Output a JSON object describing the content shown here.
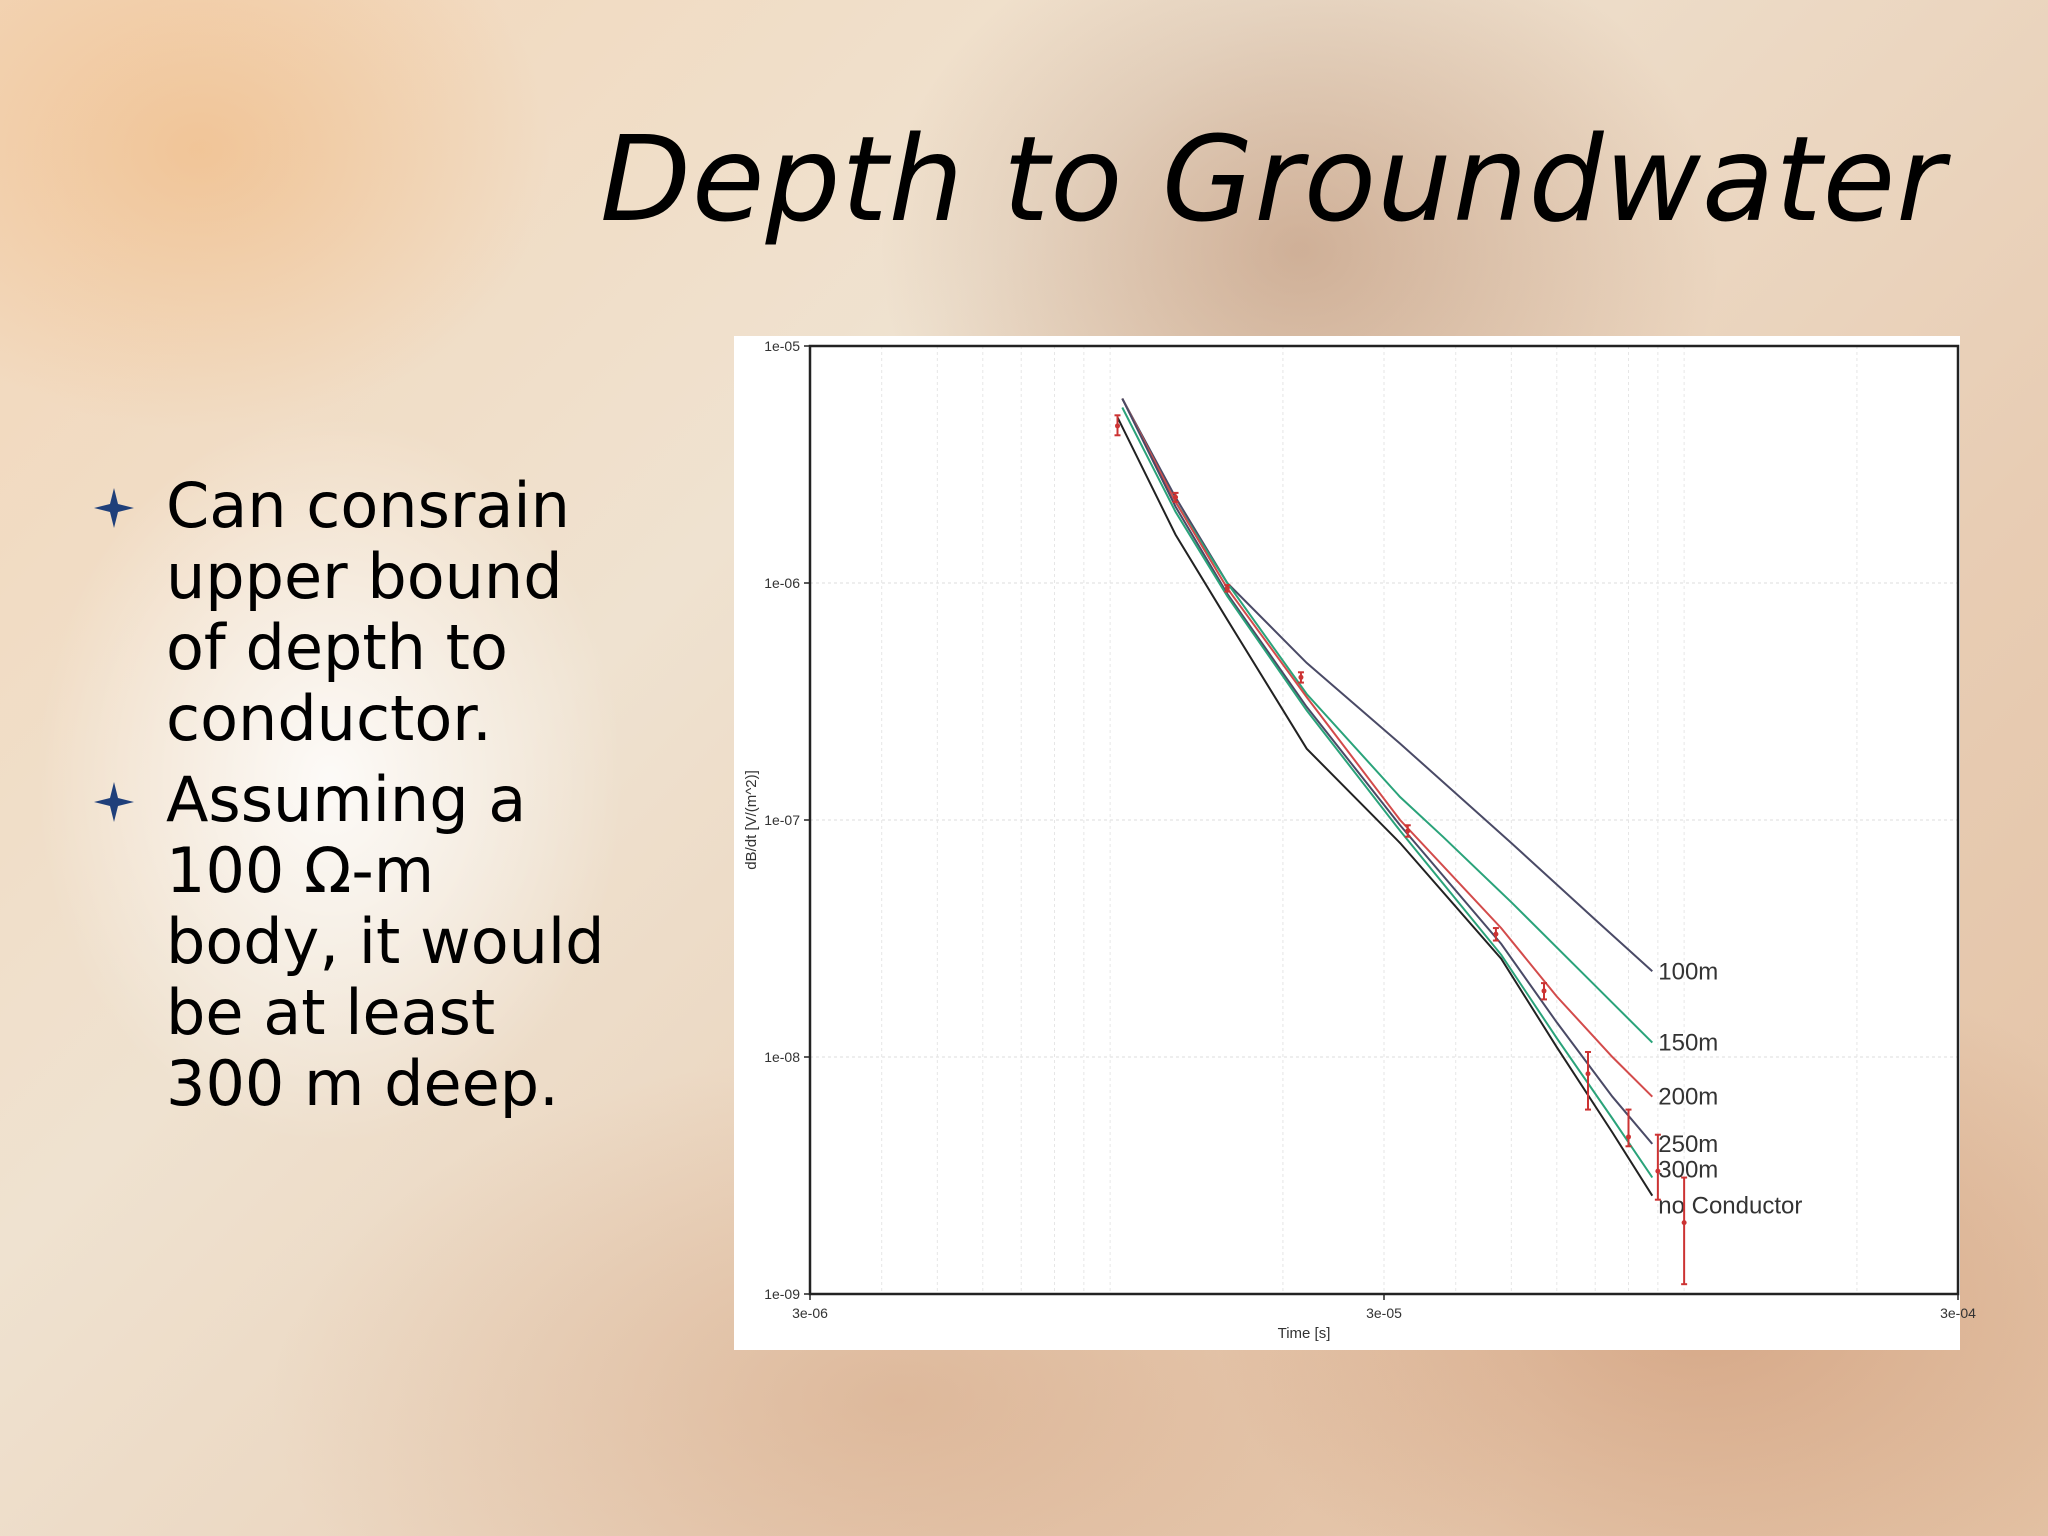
{
  "slide": {
    "title": "Depth to Groundwater",
    "bullets": [
      "Can consrain upper bound of depth to conductor.",
      "Assuming a 100 Ω-m body, it would be at least 300 m deep."
    ],
    "bullet_icon": "four-point-star-icon",
    "bullet_color": "#1f3f7a"
  },
  "chart_data": {
    "type": "line",
    "title": "",
    "xlabel": "Time [s]",
    "ylabel": "dB/dt [V/(m^2)]",
    "xscale": "log",
    "yscale": "log",
    "xlim": [
      3e-06,
      0.0003
    ],
    "ylim": [
      1e-09,
      1e-05
    ],
    "xticks": [
      {
        "value": 3e-06,
        "label": "3e-06"
      },
      {
        "value": 3e-05,
        "label": "3e-05"
      },
      {
        "value": 0.0003,
        "label": "3e-04"
      }
    ],
    "yticks": [
      {
        "value": 1e-05,
        "label": "1e-05"
      },
      {
        "value": 1e-06,
        "label": "1e-06"
      },
      {
        "value": 1e-07,
        "label": "1e-07"
      },
      {
        "value": 1e-08,
        "label": "1e-08"
      },
      {
        "value": 1e-09,
        "label": "1e-09"
      }
    ],
    "grid": true,
    "legend": "none",
    "series": [
      {
        "name": "100m",
        "color": "#4a4a66",
        "x": [
          1.05e-05,
          1.3e-05,
          1.6e-05,
          2.2e-05,
          3.2e-05,
          5e-05,
          7e-05,
          8.8e-05
        ],
        "y": [
          6e-06,
          2.3e-06,
          1e-06,
          4.6e-07,
          2.1e-07,
          8e-08,
          3.8e-08,
          2.3e-08
        ]
      },
      {
        "name": "150m",
        "color": "#2aa37a",
        "x": [
          1.05e-05,
          1.3e-05,
          1.6e-05,
          2.2e-05,
          3.2e-05,
          3.8e-05,
          5e-05,
          7e-05,
          8.8e-05
        ],
        "y": [
          6e-06,
          2.2e-06,
          1e-06,
          3.4e-07,
          1.25e-07,
          8.5e-08,
          4.5e-08,
          2e-08,
          1.15e-08
        ]
      },
      {
        "name": "200m",
        "color": "#d34b4b",
        "x": [
          1.05e-05,
          1.3e-05,
          1.6e-05,
          2.2e-05,
          3.2e-05,
          4.8e-05,
          6e-05,
          7.5e-05,
          8.8e-05
        ],
        "y": [
          6e-06,
          2.2e-06,
          9.5e-07,
          3.3e-07,
          1e-07,
          3.5e-08,
          1.8e-08,
          1e-08,
          6.8e-09
        ]
      },
      {
        "name": "250m",
        "color": "#4a4a66",
        "x": [
          1.05e-05,
          1.3e-05,
          1.6e-05,
          2.2e-05,
          3.2e-05,
          4.8e-05,
          6e-05,
          7.5e-05,
          8.8e-05
        ],
        "y": [
          6e-06,
          2.1e-06,
          9e-07,
          3e-07,
          9.5e-08,
          3e-08,
          1.4e-08,
          6.8e-09,
          4.3e-09
        ]
      },
      {
        "name": "300m",
        "color": "#2aa37a",
        "x": [
          1.05e-05,
          1.3e-05,
          1.6e-05,
          2.2e-05,
          3.2e-05,
          4.8e-05,
          6e-05,
          7.5e-05,
          8.8e-05
        ],
        "y": [
          5.5e-06,
          2e-06,
          8.8e-07,
          2.9e-07,
          9e-08,
          2.7e-08,
          1.2e-08,
          5.5e-09,
          3.1e-09
        ]
      },
      {
        "name": "no Conductor",
        "color": "#222222",
        "x": [
          1.03e-05,
          1.3e-05,
          1.6e-05,
          2.2e-05,
          3.2e-05,
          4.8e-05,
          6e-05,
          7.5e-05,
          8.8e-05
        ],
        "y": [
          5e-06,
          1.6e-06,
          7e-07,
          2e-07,
          8e-08,
          2.6e-08,
          1.1e-08,
          4.8e-09,
          2.6e-09
        ]
      }
    ],
    "observed": {
      "color": "#cc3333",
      "x": [
        1.03e-05,
        1.3e-05,
        1.6e-05,
        2.15e-05,
        3.3e-05,
        4.7e-05,
        5.7e-05,
        6.8e-05,
        8e-05,
        9e-05,
        0.0001
      ],
      "y": [
        4.6e-06,
        2.3e-06,
        9.5e-07,
        4e-07,
        9e-08,
        3.3e-08,
        1.9e-08,
        8.5e-09,
        4.6e-09,
        3.3e-09,
        2e-09
      ],
      "err_low": [
        4.2e-06,
        2.2e-06,
        9.2e-07,
        3.8e-07,
        8.5e-08,
        3.1e-08,
        1.75e-08,
        6e-09,
        4.2e-09,
        2.5e-09,
        1.1e-09
      ],
      "err_high": [
        5.1e-06,
        2.4e-06,
        9.8e-07,
        4.2e-07,
        9.5e-08,
        3.5e-08,
        2.05e-08,
        1.05e-08,
        6e-09,
        4.7e-09,
        3.1e-09
      ]
    }
  }
}
